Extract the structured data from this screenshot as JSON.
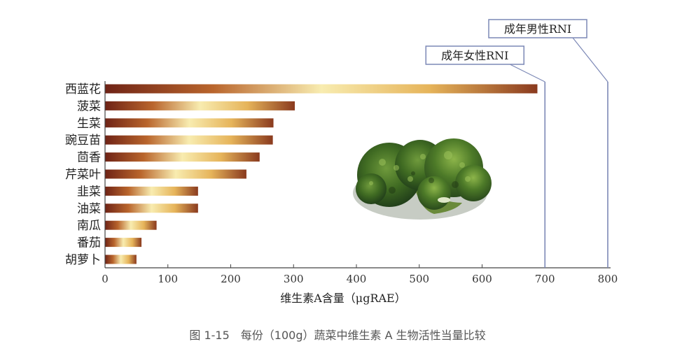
{
  "figure": {
    "caption": "图 1-15　每份（100g）蔬菜中维生素 A 生物活性当量比较"
  },
  "chart_data": {
    "type": "bar",
    "orientation": "horizontal",
    "categories": [
      "西蓝花",
      "菠菜",
      "生菜",
      "豌豆苗",
      "茴香",
      "芹菜叶",
      "韭菜",
      "油菜",
      "南瓜",
      "番茄",
      "胡萝卜"
    ],
    "values": [
      688,
      302,
      268,
      267,
      246,
      225,
      148,
      148,
      82,
      58,
      50
    ],
    "xlabel": "维生素A含量（μgRAE）",
    "ylabel": "",
    "xlim": [
      0,
      800
    ],
    "xticks": [
      0,
      100,
      200,
      300,
      400,
      500,
      600,
      700,
      800
    ],
    "grid": false,
    "reference_lines": [
      {
        "label": "成年女性RNI",
        "value": 700,
        "color": "#7c88b6"
      },
      {
        "label": "成年男性RNI",
        "value": 800,
        "color": "#7c88b6"
      }
    ],
    "bar_gradient": [
      "#6f2316",
      "#b9652c",
      "#f8ecb0",
      "#e6b45a",
      "#8a3a1e"
    ]
  },
  "illustration": {
    "icon": "broccoli-icon"
  }
}
